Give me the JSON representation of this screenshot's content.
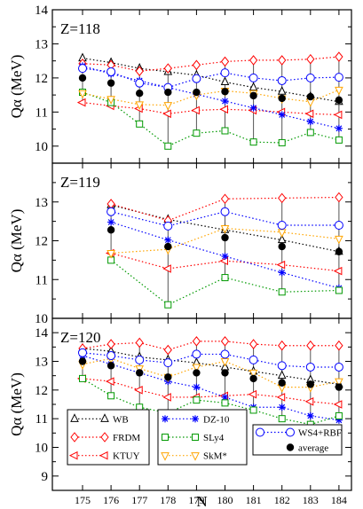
{
  "chart_data": [
    {
      "type": "scatter",
      "label": "Z=118",
      "ylabel": "Qα (MeV)",
      "xlabel": "N",
      "ylim": [
        9.5,
        14
      ],
      "yticks": [
        10,
        11,
        12,
        13,
        14
      ],
      "x": [
        175,
        176,
        177,
        178,
        179,
        180,
        181,
        182,
        183,
        184
      ],
      "series": [
        {
          "name": "WB",
          "values": [
            12.58,
            12.45,
            12.28,
            12.18,
            12.08,
            11.88,
            11.72,
            11.6,
            11.45,
            11.3
          ]
        },
        {
          "name": "FRDM",
          "values": [
            12.42,
            12.38,
            12.2,
            12.28,
            12.38,
            12.48,
            12.52,
            12.52,
            12.55,
            12.62
          ]
        },
        {
          "name": "KTUY",
          "values": [
            11.28,
            11.18,
            11.1,
            10.95,
            11.05,
            11.08,
            11.05,
            11.0,
            10.95,
            10.92
          ]
        },
        {
          "name": "DZ-10",
          "values": [
            12.35,
            12.12,
            11.92,
            11.72,
            11.52,
            11.32,
            11.12,
            10.92,
            10.72,
            10.52
          ]
        },
        {
          "name": "SLy4",
          "values": [
            11.58,
            11.28,
            10.65,
            10.0,
            10.38,
            10.45,
            10.12,
            10.1,
            10.4,
            10.18
          ]
        },
        {
          "name": "SkM*",
          "values": [
            11.55,
            11.38,
            11.22,
            11.2,
            11.5,
            11.62,
            11.55,
            11.4,
            11.3,
            11.65
          ]
        },
        {
          "name": "WS4+RBF",
          "values": [
            12.28,
            12.18,
            11.85,
            11.72,
            11.98,
            12.15,
            12.0,
            11.92,
            12.0,
            12.02
          ]
        },
        {
          "name": "average",
          "values": [
            12.0,
            11.85,
            11.55,
            11.58,
            11.58,
            11.6,
            11.48,
            11.4,
            11.45,
            11.35
          ]
        }
      ]
    },
    {
      "type": "scatter",
      "label": "Z=119",
      "ylabel": "Qα (MeV)",
      "xlabel": "N",
      "ylim": [
        10,
        14
      ],
      "yticks": [
        10,
        11,
        12,
        13
      ],
      "x": [
        176,
        178,
        180,
        182,
        184
      ],
      "series": [
        {
          "name": "WB",
          "values": [
            12.92,
            12.55,
            12.28,
            12.02,
            11.72
          ]
        },
        {
          "name": "FRDM",
          "values": [
            12.95,
            12.52,
            13.08,
            13.1,
            13.12
          ]
        },
        {
          "name": "KTUY",
          "values": [
            11.68,
            11.28,
            11.48,
            11.38,
            11.22
          ]
        },
        {
          "name": "DZ-10",
          "values": [
            12.48,
            12.02,
            11.6,
            11.18,
            10.78
          ]
        },
        {
          "name": "SLy4",
          "values": [
            11.5,
            10.35,
            11.05,
            10.68,
            10.72
          ]
        },
        {
          "name": "SkM*",
          "values": [
            11.68,
            11.78,
            12.32,
            12.22,
            12.05
          ]
        },
        {
          "name": "WS4+RBF",
          "values": [
            12.75,
            12.38,
            12.75,
            12.4,
            12.4
          ]
        },
        {
          "name": "average",
          "values": [
            12.28,
            11.85,
            12.08,
            11.85,
            11.72
          ]
        }
      ]
    },
    {
      "type": "scatter",
      "label": "Z=120",
      "ylabel": "Qα (MeV)",
      "xlabel": "N",
      "xticks": [
        175,
        176,
        177,
        178,
        179,
        180,
        181,
        182,
        183,
        184
      ],
      "ylim": [
        8.5,
        14.5
      ],
      "yticks": [
        9,
        10,
        11,
        12,
        13,
        14
      ],
      "x": [
        175,
        176,
        177,
        178,
        179,
        180,
        181,
        182,
        183,
        184
      ],
      "series": [
        {
          "name": "WB",
          "values": [
            13.45,
            13.35,
            13.15,
            13.05,
            12.95,
            12.8,
            12.65,
            12.5,
            12.35,
            12.2
          ]
        },
        {
          "name": "FRDM",
          "values": [
            13.45,
            13.6,
            13.65,
            13.4,
            13.7,
            13.7,
            13.6,
            13.55,
            13.55,
            13.55
          ]
        },
        {
          "name": "KTUY",
          "values": [
            12.4,
            12.3,
            12.0,
            11.75,
            11.75,
            11.8,
            11.85,
            11.75,
            11.6,
            11.5
          ]
        },
        {
          "name": "DZ-10",
          "values": [
            13.2,
            12.9,
            12.6,
            12.3,
            12.1,
            11.75,
            11.4,
            11.4,
            11.1,
            10.95
          ]
        },
        {
          "name": "SLy4",
          "values": [
            12.4,
            11.8,
            11.4,
            11.2,
            11.65,
            11.55,
            11.3,
            11.0,
            10.8,
            11.1
          ]
        },
        {
          "name": "SkM*",
          "values": [
            12.9,
            13.1,
            12.75,
            12.45,
            12.8,
            13.0,
            12.6,
            12.1,
            12.1,
            12.3
          ]
        },
        {
          "name": "WS4+RBF",
          "values": [
            13.3,
            13.2,
            13.05,
            12.95,
            13.25,
            13.25,
            13.05,
            12.85,
            12.8,
            12.8
          ]
        },
        {
          "name": "average",
          "values": [
            13.0,
            12.85,
            12.6,
            12.45,
            12.6,
            12.6,
            12.4,
            12.25,
            12.2,
            12.1
          ]
        }
      ]
    }
  ],
  "legend": {
    "group1": [
      "WB",
      "FRDM",
      "KTUY"
    ],
    "group2": [
      "DZ-10",
      "SLy4",
      "SkM*"
    ],
    "group3": [
      "WS4+RBF",
      "average"
    ]
  },
  "colors": {
    "WB": "#000000",
    "FRDM": "#ff0000",
    "KTUY": "#ff0000",
    "DZ-10": "#0000ff",
    "SLy4": "#009900",
    "SkM*": "#ffa500",
    "WS4+RBF": "#0000ff",
    "average": "#000000"
  },
  "markers": {
    "WB": "triangle-up-open",
    "FRDM": "diamond-open",
    "KTUY": "triangle-left-open",
    "DZ-10": "star",
    "SLy4": "square-open",
    "SkM*": "triangle-down-open",
    "WS4+RBF": "circle-open",
    "average": "circle-filled"
  }
}
